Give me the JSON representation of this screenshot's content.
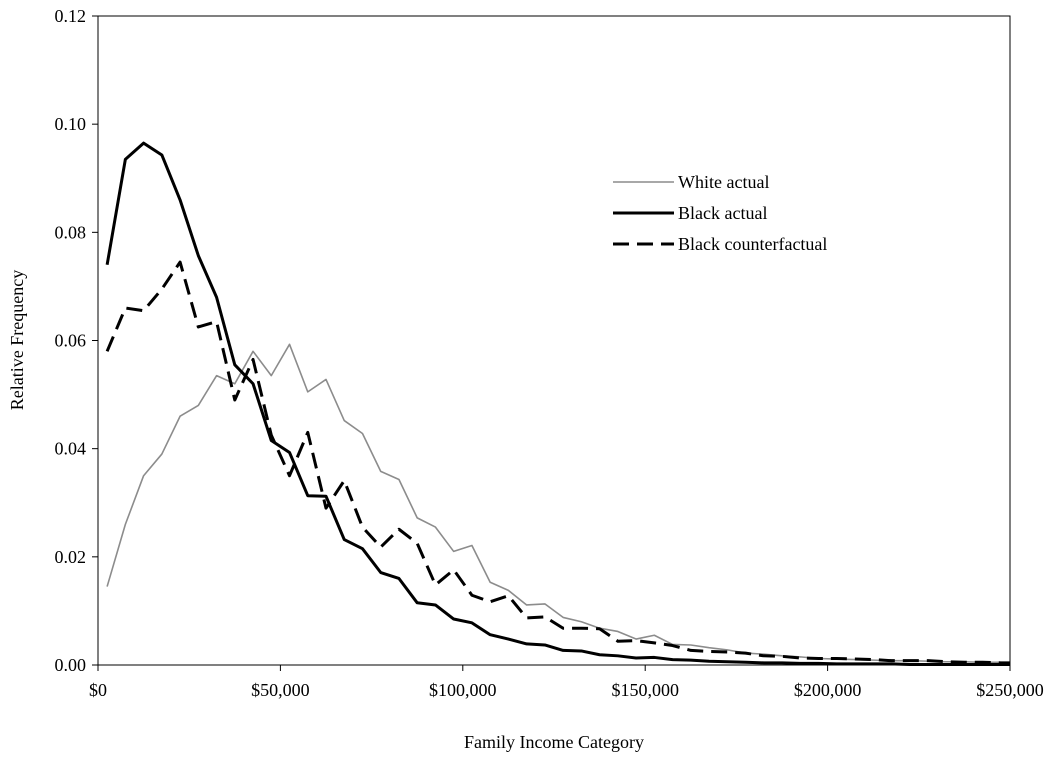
{
  "chart_data": {
    "type": "line",
    "title": "",
    "xlabel": "Family Income Category",
    "ylabel": "Relative Frequency",
    "xlim": [
      0,
      250000
    ],
    "ylim": [
      0,
      0.12
    ],
    "x_ticks": [
      0,
      50000,
      100000,
      150000,
      200000,
      250000
    ],
    "x_tick_labels": [
      "$0",
      "$50,000",
      "$100,000",
      "$150,000",
      "$200,000",
      "$250,000"
    ],
    "y_ticks": [
      0,
      0.02,
      0.04,
      0.06,
      0.08,
      0.1,
      0.12
    ],
    "y_tick_labels": [
      "0.00",
      "0.02",
      "0.04",
      "0.06",
      "0.08",
      "0.10",
      "0.12"
    ],
    "grid": false,
    "legend_position": "top-right",
    "x": [
      2500,
      7500,
      12500,
      17500,
      22500,
      27500,
      32500,
      37500,
      42500,
      47500,
      52500,
      57500,
      62500,
      67500,
      72500,
      77500,
      82500,
      87500,
      92500,
      97500,
      102500,
      107500,
      112500,
      117500,
      122500,
      127500,
      132500,
      137500,
      142500,
      147500,
      152500,
      157500,
      162500,
      167500,
      172500,
      177500,
      182500,
      187500,
      192500,
      197500,
      202500,
      207500,
      212500,
      217500,
      222500,
      227500,
      232500,
      237500,
      242500,
      247500,
      250000
    ],
    "series": [
      {
        "name": "White actual",
        "color": "#8c8c8c",
        "dash": "solid",
        "values": [
          0.0145,
          0.026,
          0.035,
          0.039,
          0.046,
          0.048,
          0.0535,
          0.052,
          0.058,
          0.0535,
          0.0593,
          0.0505,
          0.0528,
          0.0452,
          0.0428,
          0.0358,
          0.0343,
          0.0272,
          0.0255,
          0.021,
          0.0221,
          0.0153,
          0.0138,
          0.0111,
          0.0113,
          0.0088,
          0.008,
          0.0068,
          0.0062,
          0.0048,
          0.0055,
          0.0038,
          0.0037,
          0.0032,
          0.0028,
          0.0022,
          0.002,
          0.0017,
          0.0015,
          0.0012,
          0.0011,
          0.001,
          0.0009,
          0.0008,
          0.0008,
          0.0007,
          0.0006,
          0.0006,
          0.0005,
          0.0005,
          0.0005
        ]
      },
      {
        "name": "Black actual",
        "color": "#000000",
        "dash": "solid",
        "values": [
          0.074,
          0.0935,
          0.0965,
          0.0943,
          0.086,
          0.0757,
          0.068,
          0.0555,
          0.052,
          0.0415,
          0.0393,
          0.0313,
          0.0312,
          0.0232,
          0.0215,
          0.0171,
          0.016,
          0.0115,
          0.0111,
          0.0085,
          0.0078,
          0.0056,
          0.0048,
          0.0039,
          0.0037,
          0.0027,
          0.0026,
          0.0019,
          0.0017,
          0.0013,
          0.0014,
          0.001,
          0.0009,
          0.0007,
          0.0006,
          0.0005,
          0.0004,
          0.0004,
          0.0003,
          0.0003,
          0.0002,
          0.0002,
          0.0002,
          0.0002,
          0.0001,
          0.0001,
          0.0001,
          0.0001,
          0.0001,
          0.0001,
          0.0001
        ]
      },
      {
        "name": "Black counterfactual",
        "color": "#000000",
        "dash": "dashed",
        "values": [
          0.058,
          0.066,
          0.0655,
          0.0695,
          0.0745,
          0.0625,
          0.0635,
          0.049,
          0.0565,
          0.0425,
          0.035,
          0.043,
          0.029,
          0.0341,
          0.0255,
          0.0218,
          0.0251,
          0.0225,
          0.0148,
          0.0176,
          0.0129,
          0.0117,
          0.0128,
          0.0087,
          0.0089,
          0.0068,
          0.0068,
          0.0067,
          0.0044,
          0.0045,
          0.0041,
          0.0036,
          0.0027,
          0.0025,
          0.0024,
          0.0022,
          0.0017,
          0.0016,
          0.0013,
          0.0012,
          0.0012,
          0.0011,
          0.001,
          0.0008,
          0.0008,
          0.0008,
          0.0006,
          0.0005,
          0.0005,
          0.0004,
          0.0004
        ]
      }
    ]
  }
}
